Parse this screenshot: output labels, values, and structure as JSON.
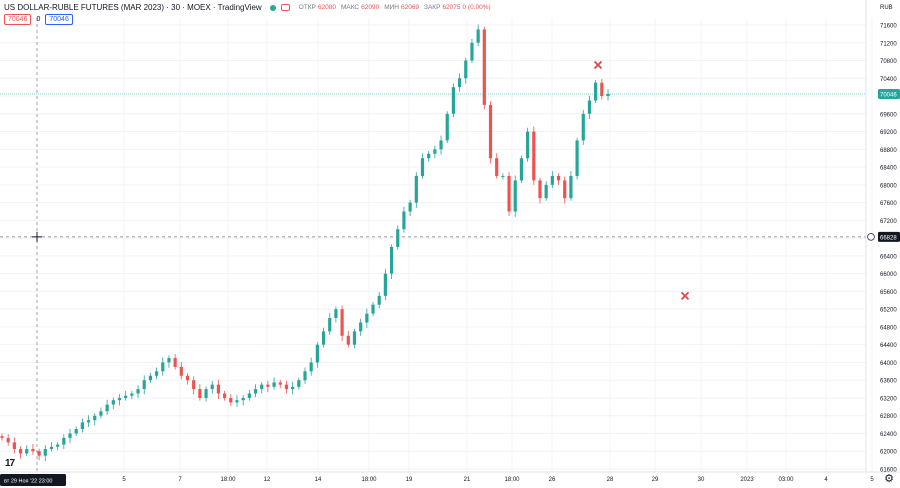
{
  "header": {
    "symbol": "US DOLLAR-RUBLE FUTURES (MAR 2023) · 30 · MOEX · TradingView",
    "open_label": "ОТКР",
    "open": "62080",
    "high_label": "МАКС",
    "high": "62090",
    "low_label": "МИН",
    "low": "62069",
    "close_label": "ЗАКР",
    "close": "62075",
    "change": "0 (0.00%)"
  },
  "indicator_boxes": {
    "left": "70046",
    "mid": "0",
    "right": "70046"
  },
  "price_scale": {
    "currency": "RUB",
    "ticks": [
      "71600",
      "71200",
      "70800",
      "70400",
      "70000",
      "69600",
      "69200",
      "68800",
      "68400",
      "68000",
      "67600",
      "67200",
      "66800",
      "66400",
      "66000",
      "65600",
      "65200",
      "64800",
      "64400",
      "64000",
      "63600",
      "63200",
      "62800",
      "62400",
      "62000",
      "61600"
    ],
    "last_price": "70046",
    "crosshair_price": "66828"
  },
  "time_scale": {
    "ticks": [
      "5",
      "7",
      "18:00",
      "12",
      "14",
      "18:00",
      "19",
      "21",
      "18:00",
      "26",
      "28",
      "29",
      "30",
      "2023",
      "03:00",
      "4",
      "5"
    ],
    "crosshair_label": "вт 29 Ноя '22   23:00"
  },
  "colors": {
    "up": "#26a69a",
    "down": "#ef5350",
    "grid": "#f0f3fa",
    "marker": "#e0454a"
  },
  "markers": [
    "x-marker",
    "x-marker"
  ],
  "chart_data": {
    "type": "candlestick",
    "title": "US DOLLAR-RUBLE FUTURES (MAR 2023)",
    "interval": "30",
    "exchange": "MOEX",
    "ylim": [
      61400,
      71850
    ],
    "x_labels": [
      "5",
      "7",
      "18:00",
      "12",
      "14",
      "18:00",
      "19",
      "21",
      "18:00",
      "26",
      "28",
      "29",
      "30",
      "2023",
      "03:00",
      "4",
      "5"
    ],
    "close_path_approx": [
      62300,
      62200,
      62050,
      61950,
      62050,
      62000,
      61900,
      62050,
      62100,
      62150,
      62300,
      62400,
      62500,
      62650,
      62700,
      62800,
      62900,
      63050,
      63150,
      63200,
      63250,
      63300,
      63400,
      63600,
      63700,
      63800,
      64000,
      64100,
      63900,
      63700,
      63600,
      63400,
      63200,
      63400,
      63500,
      63300,
      63200,
      63100,
      63150,
      63200,
      63300,
      63400,
      63500,
      63450,
      63550,
      63500,
      63400,
      63450,
      63600,
      63800,
      64000,
      64400,
      64700,
      65000,
      65200,
      64600,
      64400,
      64700,
      64900,
      65100,
      65300,
      65500,
      66000,
      66600,
      67000,
      67400,
      67600,
      68200,
      68600,
      68700,
      68800,
      69000,
      69600,
      70200,
      70400,
      70800,
      71200,
      71500,
      69800,
      68600,
      68200,
      68200,
      67400,
      68100,
      68600,
      69200,
      68100,
      67700,
      68000,
      68200,
      68100,
      67700,
      68200,
      69000,
      69600,
      69900,
      70300,
      70000,
      70046
    ],
    "last": 70046,
    "crosshair": {
      "price": 66828,
      "time": "вт 29 Ноя '22 23:00"
    },
    "annotations": [
      {
        "type": "x-marker",
        "time": "27 Ноя",
        "price": 70700
      },
      {
        "type": "x-marker",
        "time": "29 Ноя",
        "price": 65500
      }
    ]
  }
}
